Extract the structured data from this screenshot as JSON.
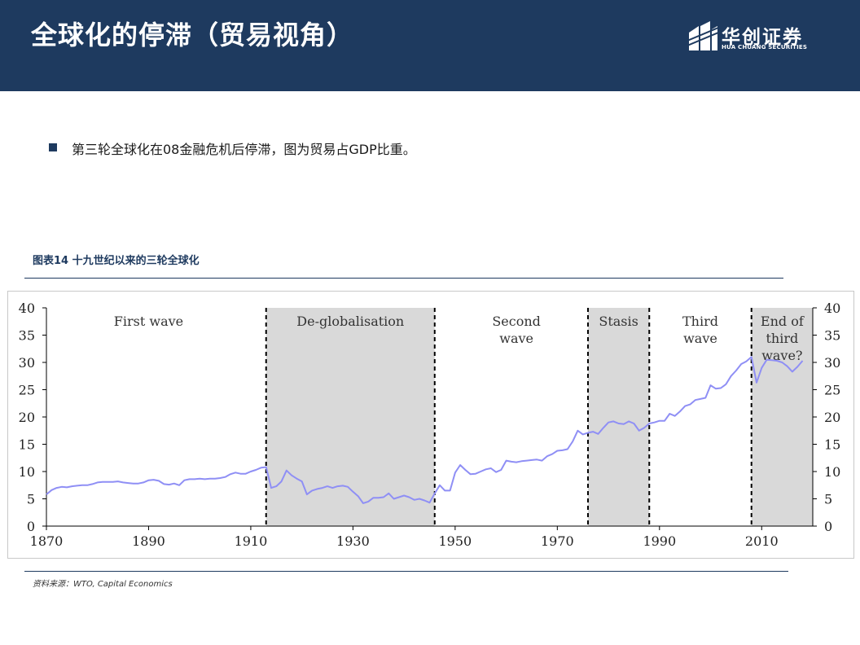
{
  "header": {
    "title": "全球化的停滞（贸易视角）",
    "logo_cn": "华创证券",
    "logo_en": "HUA CHUANG SECURITIES"
  },
  "bullet": {
    "text": "第三轮全球化在08金融危机后停滞，图为贸易占GDP比重。"
  },
  "figure": {
    "caption": "图表14  十九世纪以来的三轮全球化",
    "source": "资料来源：WTO, Capital Economics"
  },
  "colors": {
    "header_bg": "#1e3a5f",
    "line": "#8f8ff5",
    "shade": "#d9d9d9"
  },
  "chart_data": {
    "type": "line",
    "title": "",
    "xlabel": "",
    "ylabel": "",
    "xlim": [
      1870,
      2020
    ],
    "ylim": [
      0,
      40
    ],
    "x_ticks": [
      1870,
      1890,
      1910,
      1930,
      1950,
      1970,
      1990,
      2010
    ],
    "y_ticks": [
      0,
      5,
      10,
      15,
      20,
      25,
      30,
      35,
      40
    ],
    "grid": false,
    "dividers": [
      1913,
      1946,
      1976,
      1988,
      2008
    ],
    "shaded_periods": [
      [
        1913,
        1946
      ],
      [
        1976,
        1988
      ],
      [
        2008,
        2020
      ]
    ],
    "period_labels": [
      {
        "x": 1890,
        "lines": [
          "First wave"
        ]
      },
      {
        "x": 1929.5,
        "lines": [
          "De-globalisation"
        ]
      },
      {
        "x": 1962,
        "lines": [
          "Second",
          "wave"
        ]
      },
      {
        "x": 1982,
        "lines": [
          "Stasis"
        ]
      },
      {
        "x": 1998,
        "lines": [
          "Third",
          "wave"
        ]
      },
      {
        "x": 2014,
        "lines": [
          "End of",
          "third",
          "wave?"
        ]
      }
    ],
    "series": [
      {
        "name": "",
        "x": [
          1870,
          1871,
          1872,
          1873,
          1874,
          1875,
          1876,
          1877,
          1878,
          1879,
          1880,
          1881,
          1882,
          1883,
          1884,
          1885,
          1886,
          1887,
          1888,
          1889,
          1890,
          1891,
          1892,
          1893,
          1894,
          1895,
          1896,
          1897,
          1898,
          1899,
          1900,
          1901,
          1902,
          1903,
          1904,
          1905,
          1906,
          1907,
          1908,
          1909,
          1910,
          1911,
          1912,
          1913,
          1914,
          1915,
          1916,
          1917,
          1918,
          1919,
          1920,
          1921,
          1922,
          1923,
          1924,
          1925,
          1926,
          1927,
          1928,
          1929,
          1930,
          1931,
          1932,
          1933,
          1934,
          1935,
          1936,
          1937,
          1938,
          1939,
          1940,
          1941,
          1942,
          1943,
          1944,
          1945,
          1946,
          1947,
          1948,
          1949,
          1950,
          1951,
          1952,
          1953,
          1954,
          1955,
          1956,
          1957,
          1958,
          1959,
          1960,
          1961,
          1962,
          1963,
          1964,
          1965,
          1966,
          1967,
          1968,
          1969,
          1970,
          1971,
          1972,
          1973,
          1974,
          1975,
          1976,
          1977,
          1978,
          1979,
          1980,
          1981,
          1982,
          1983,
          1984,
          1985,
          1986,
          1987,
          1988,
          1989,
          1990,
          1991,
          1992,
          1993,
          1994,
          1995,
          1996,
          1997,
          1998,
          1999,
          2000,
          2001,
          2002,
          2003,
          2004,
          2005,
          2006,
          2007,
          2008,
          2009,
          2010,
          2011,
          2012,
          2013,
          2014,
          2015,
          2016,
          2017,
          2018
        ],
        "y": [
          5.8,
          6.6,
          7.0,
          7.2,
          7.1,
          7.3,
          7.4,
          7.5,
          7.5,
          7.7,
          8.0,
          8.1,
          8.1,
          8.1,
          8.2,
          8.0,
          7.9,
          7.8,
          7.8,
          8.0,
          8.4,
          8.5,
          8.3,
          7.7,
          7.6,
          7.8,
          7.5,
          8.4,
          8.6,
          8.6,
          8.7,
          8.6,
          8.7,
          8.7,
          8.8,
          9.0,
          9.5,
          9.8,
          9.6,
          9.6,
          10.0,
          10.3,
          10.7,
          10.8,
          7.0,
          7.3,
          8.2,
          10.2,
          9.3,
          8.7,
          8.2,
          5.8,
          6.5,
          6.8,
          7.0,
          7.3,
          7.0,
          7.3,
          7.4,
          7.2,
          6.3,
          5.5,
          4.2,
          4.5,
          5.2,
          5.2,
          5.3,
          6.0,
          5.0,
          5.3,
          5.6,
          5.3,
          4.8,
          5.0,
          4.7,
          4.3,
          6.0,
          7.5,
          6.5,
          6.5,
          9.8,
          11.2,
          10.3,
          9.5,
          9.6,
          10.0,
          10.4,
          10.6,
          9.9,
          10.3,
          12.0,
          11.8,
          11.7,
          11.9,
          12.0,
          12.1,
          12.2,
          12.0,
          12.8,
          13.2,
          13.8,
          13.9,
          14.1,
          15.5,
          17.5,
          16.8,
          17.1,
          17.3,
          16.9,
          18.0,
          19.0,
          19.2,
          18.8,
          18.7,
          19.2,
          18.8,
          17.5,
          18.0,
          18.8,
          19.0,
          19.3,
          19.3,
          20.6,
          20.2,
          21.0,
          22.0,
          22.3,
          23.1,
          23.3,
          23.5,
          25.8,
          25.2,
          25.3,
          26.0,
          27.5,
          28.5,
          29.7,
          30.2,
          31.0,
          26.3,
          29.0,
          30.5,
          30.4,
          30.3,
          30.0,
          29.3,
          28.3,
          29.2,
          30.3
        ]
      }
    ]
  }
}
